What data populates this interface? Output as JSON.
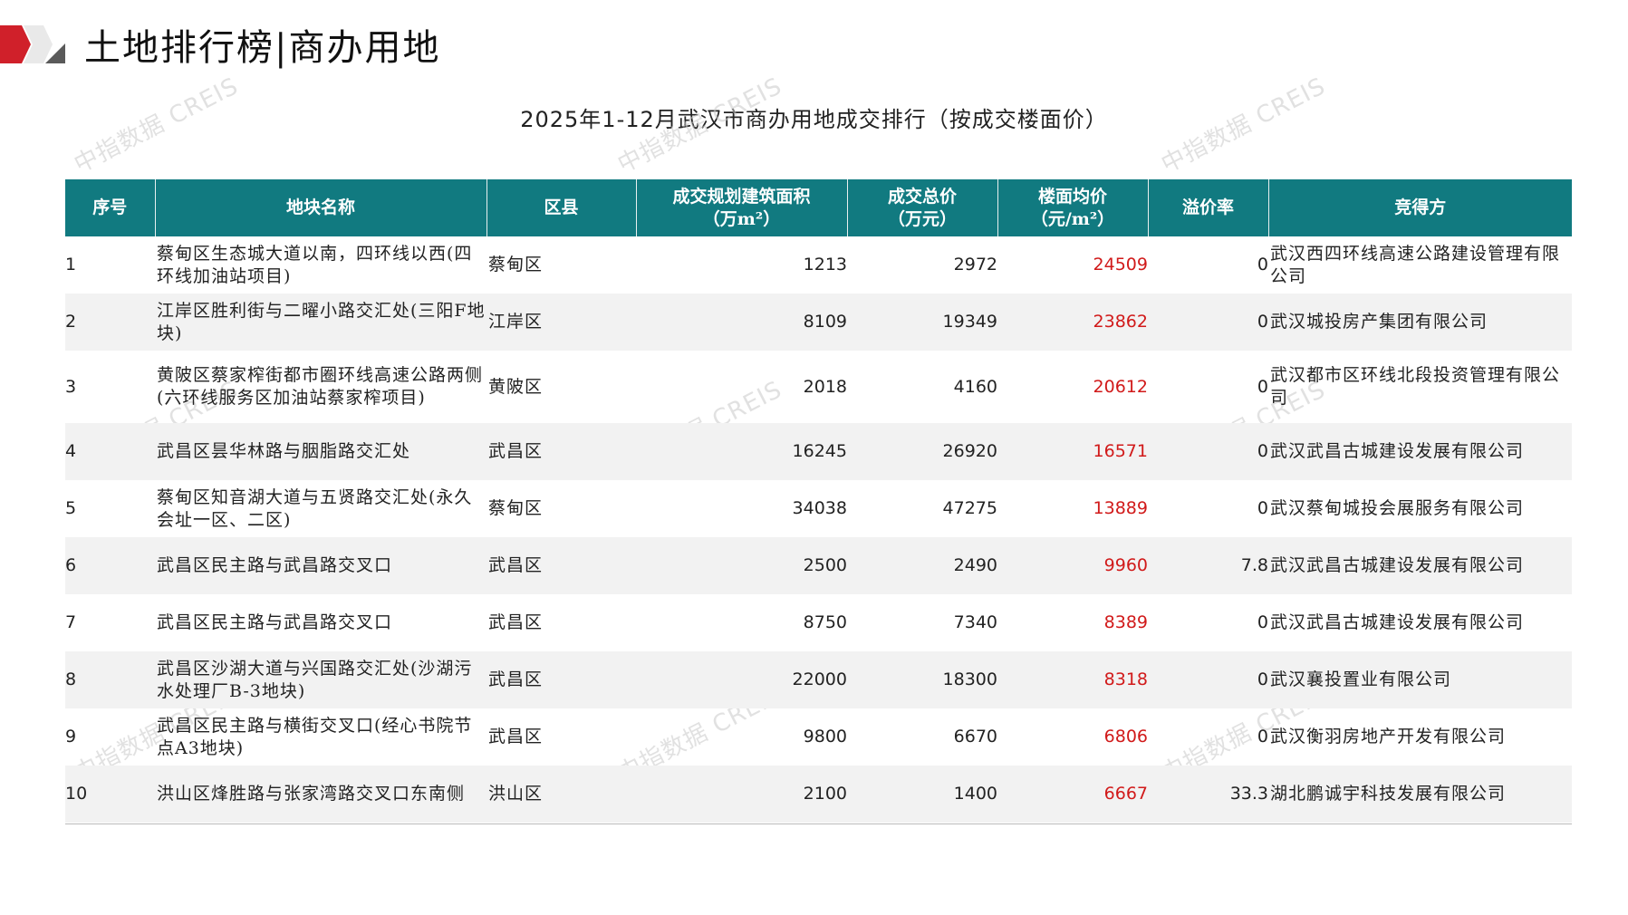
{
  "header": {
    "title": "土地排行榜|商办用地",
    "subtitle": "2025年1-12月武汉市商办用地成交排行（按成交楼面价）",
    "accent_color": "#d0202a",
    "header_bg_color": "#117a80"
  },
  "watermark": {
    "text": "中指数据 CREIS"
  },
  "table": {
    "columns": [
      "序号",
      "地块名称",
      "区县",
      "成交规划建筑面积\n（万m²）",
      "成交总价\n（万元）",
      "楼面均价\n（元/m²）",
      "溢价率",
      "竞得方"
    ],
    "rows": [
      {
        "idx": "1",
        "name": "蔡甸区生态城大道以南，四环线以西(四环线加油站项目)",
        "district": "蔡甸区",
        "area": "1213",
        "total": "2972",
        "price": "24509",
        "premium": "0",
        "winner": "武汉西四环线高速公路建设管理有限公司"
      },
      {
        "idx": "2",
        "name": "江岸区胜利街与二曜小路交汇处(三阳F地块)",
        "district": "江岸区",
        "area": "8109",
        "total": "19349",
        "price": "23862",
        "premium": "0",
        "winner": "武汉城投房产集团有限公司"
      },
      {
        "idx": "3",
        "name": "黄陂区蔡家榨街都市圈环线高速公路两侧(六环线服务区加油站蔡家榨项目)",
        "district": "黄陂区",
        "area": "2018",
        "total": "4160",
        "price": "20612",
        "premium": "0",
        "winner": "武汉都市区环线北段投资管理有限公司"
      },
      {
        "idx": "4",
        "name": "武昌区昙华林路与胭脂路交汇处",
        "district": "武昌区",
        "area": "16245",
        "total": "26920",
        "price": "16571",
        "premium": "0",
        "winner": "武汉武昌古城建设发展有限公司"
      },
      {
        "idx": "5",
        "name": "蔡甸区知音湖大道与五贤路交汇处(永久会址一区、二区)",
        "district": "蔡甸区",
        "area": "34038",
        "total": "47275",
        "price": "13889",
        "premium": "0",
        "winner": "武汉蔡甸城投会展服务有限公司"
      },
      {
        "idx": "6",
        "name": "武昌区民主路与武昌路交叉口",
        "district": "武昌区",
        "area": "2500",
        "total": "2490",
        "price": "9960",
        "premium": "7.8",
        "winner": "武汉武昌古城建设发展有限公司"
      },
      {
        "idx": "7",
        "name": "武昌区民主路与武昌路交叉口",
        "district": "武昌区",
        "area": "8750",
        "total": "7340",
        "price": "8389",
        "premium": "0",
        "winner": "武汉武昌古城建设发展有限公司"
      },
      {
        "idx": "8",
        "name": "武昌区沙湖大道与兴国路交汇处(沙湖污水处理厂B-3地块)",
        "district": "武昌区",
        "area": "22000",
        "total": "18300",
        "price": "8318",
        "premium": "0",
        "winner": "武汉襄投置业有限公司"
      },
      {
        "idx": "9",
        "name": "武昌区民主路与横街交叉口(经心书院节点A3地块)",
        "district": "武昌区",
        "area": "9800",
        "total": "6670",
        "price": "6806",
        "premium": "0",
        "winner": "武汉衡羽房地产开发有限公司"
      },
      {
        "idx": "10",
        "name": "洪山区烽胜路与张家湾路交叉口东南侧",
        "district": "洪山区",
        "area": "2100",
        "total": "1400",
        "price": "6667",
        "premium": "33.3",
        "winner": "湖北鹏诚宇科技发展有限公司"
      }
    ]
  }
}
